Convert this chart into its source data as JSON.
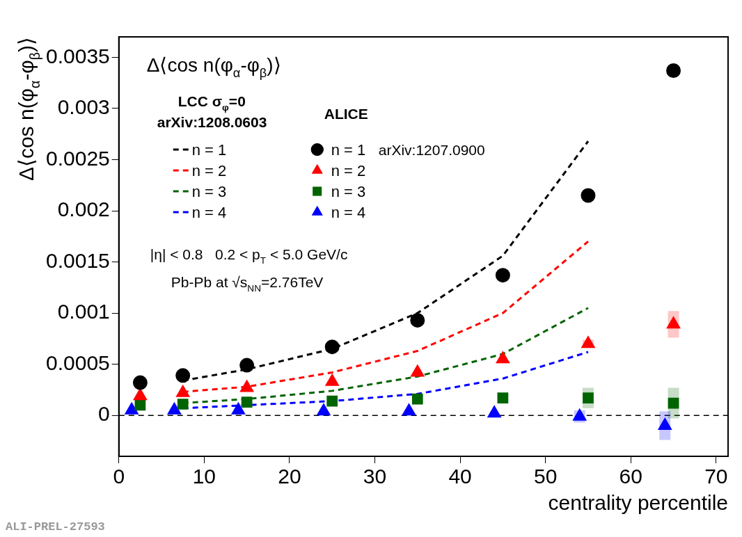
{
  "chart_data": {
    "type": "scatter",
    "title": "Δ⟨cos n(φ$_{α}$-φ$_{β}$)⟩",
    "xlabel": "centrality percentile",
    "ylabel": "Δ⟨cos n(φ$_{α}$-φ$_{β}$)⟩",
    "xlim": [
      0,
      71.4
    ],
    "xticks": [
      0,
      10,
      20,
      30,
      40,
      50,
      60,
      70
    ],
    "ylim": [
      -0.0004,
      0.0037
    ],
    "yticks": [
      0,
      0.0005,
      0.001,
      0.0015,
      0.002,
      0.0025,
      0.003,
      0.0035
    ],
    "legend": "top left",
    "marker": "circle",
    "series": [
      {
        "name": "n = 1",
        "type": "line",
        "color": "#000000",
        "marker": "none",
        "line_style": "dashed",
        "x": [
          7.5,
          15,
          25,
          35,
          45,
          55
        ],
        "values": [
          0.00034,
          0.00045,
          0.00065,
          0.001,
          0.00156,
          0.00268
        ]
      },
      {
        "name": "n = 2",
        "type": "line",
        "color": "#ff0000",
        "marker": "none",
        "line_style": "dashed",
        "x": [
          7.5,
          15,
          25,
          35,
          45,
          55
        ],
        "values": [
          0.00023,
          0.00028,
          0.00042,
          0.00063,
          0.001,
          0.0017
        ]
      },
      {
        "name": "n = 3",
        "type": "line",
        "color": "#006400",
        "marker": "none",
        "line_style": "dashed",
        "x": [
          7.5,
          15,
          25,
          35,
          45,
          55
        ],
        "values": [
          0.00012,
          0.00016,
          0.00024,
          0.00038,
          0.0006,
          0.00105
        ]
      },
      {
        "name": "n = 4",
        "type": "line",
        "color": "#0000ff",
        "marker": "none",
        "line_style": "dashed",
        "x": [
          7.5,
          15,
          25,
          35,
          45,
          55
        ],
        "values": [
          7e-05,
          0.0001,
          0.00014,
          0.00021,
          0.00036,
          0.00062
        ]
      },
      {
        "name": "n = 1",
        "color": "#000000",
        "x": [
          2.5,
          7.5,
          15,
          25,
          35,
          45,
          55,
          65
        ],
        "values": [
          0.00032,
          0.00039,
          0.00049,
          0.00067,
          0.00093,
          0.00137,
          0.00215,
          0.00337
        ]
      },
      {
        "name": "n = 2",
        "color": "#ff0000",
        "marker": "triangle",
        "x": [
          2.5,
          7.5,
          15,
          25,
          35,
          45,
          55,
          65
        ],
        "values": [
          0.00019,
          0.00022,
          0.00027,
          0.00033,
          0.00042,
          0.00055,
          0.0007,
          0.00089
        ],
        "errors": [
          null,
          null,
          null,
          null,
          null,
          null,
          4e-05,
          0.00013
        ]
      },
      {
        "name": "n = 3",
        "color": "#006400",
        "marker": "square",
        "x": [
          2.5,
          7.5,
          15,
          25,
          35,
          45,
          55,
          65
        ],
        "values": [
          0.0001,
          0.00011,
          0.00013,
          0.00014,
          0.00016,
          0.00017,
          0.00017,
          0.00012
        ],
        "errors": [
          null,
          null,
          null,
          null,
          null,
          null,
          0.0001,
          0.00015
        ]
      },
      {
        "name": "n = 4",
        "color": "#0000ff",
        "marker": "triangle",
        "x": [
          1.5,
          6.5,
          14,
          24,
          34,
          44,
          54,
          64
        ],
        "values": [
          5e-05,
          5e-05,
          5e-05,
          4e-05,
          4e-05,
          2e-05,
          -1e-05,
          -0.0001
        ],
        "errors": [
          null,
          null,
          null,
          null,
          null,
          null,
          6e-05,
          0.00014
        ]
      }
    ],
    "ref_lines": [
      {
        "axis": "y",
        "value": 0,
        "color": "#000000",
        "line_style": "dashed"
      }
    ],
    "annotations": [
      "LCC σ$_{φ}$=0",
      "arXiv:1208.0603",
      "ALICE",
      "arXiv:1207.0900",
      "|η| < 0.8   0.2 < p$_{T}$ < 5.0 GeV/c",
      "Pb-Pb at √s$_{NN}$=2.76TeV",
      "ALI-PREL-27593"
    ]
  }
}
